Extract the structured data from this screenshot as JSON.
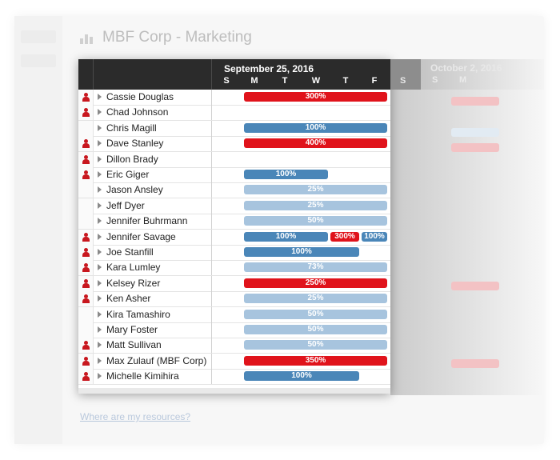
{
  "title": "MBF Corp - Marketing",
  "header": {
    "week_label": "September 25, 2016",
    "days": [
      "S",
      "M",
      "T",
      "W",
      "T",
      "F"
    ],
    "next_day": "S",
    "next_week_label": "October 2, 2016",
    "next_days": [
      "S",
      "M"
    ]
  },
  "footer_link": "Where are my resources?",
  "colors": {
    "red": "#e0131b",
    "blue": "#4a86b8",
    "light": "#a7c4de",
    "header": "#2b2b2b"
  },
  "rows": [
    {
      "name": "Cassie Douglas",
      "flag": true,
      "bars": [
        {
          "label": "300%",
          "color": "red",
          "from_day": 1,
          "to_day": 6
        }
      ]
    },
    {
      "name": "Chad Johnson",
      "flag": true,
      "bars": []
    },
    {
      "name": "Chris Magill",
      "flag": false,
      "bars": [
        {
          "label": "100%",
          "color": "blue",
          "from_day": 1,
          "to_day": 6
        }
      ]
    },
    {
      "name": "Dave Stanley",
      "flag": true,
      "bars": [
        {
          "label": "400%",
          "color": "red",
          "from_day": 1,
          "to_day": 6
        }
      ]
    },
    {
      "name": "Dillon Brady",
      "flag": true,
      "bars": []
    },
    {
      "name": "Eric Giger",
      "flag": true,
      "bars": [
        {
          "label": "100%",
          "color": "blue",
          "from_day": 1,
          "to_day": 4
        }
      ]
    },
    {
      "name": "Jason Ansley",
      "flag": false,
      "bars": [
        {
          "label": "25%",
          "color": "light",
          "from_day": 1,
          "to_day": 6
        }
      ]
    },
    {
      "name": "Jeff Dyer",
      "flag": false,
      "bars": [
        {
          "label": "25%",
          "color": "light",
          "from_day": 1,
          "to_day": 6
        }
      ]
    },
    {
      "name": "Jennifer Buhrmann",
      "flag": false,
      "bars": [
        {
          "label": "50%",
          "color": "light",
          "from_day": 1,
          "to_day": 6
        }
      ]
    },
    {
      "name": "Jennifer Savage",
      "flag": true,
      "bars": [
        {
          "label": "100%",
          "color": "blue",
          "from_day": 1,
          "to_day": 4
        },
        {
          "label": "300%",
          "color": "red",
          "from_day": 4,
          "to_day": 5
        },
        {
          "label": "100%",
          "color": "blue",
          "from_day": 5,
          "to_day": 6
        }
      ]
    },
    {
      "name": "Joe Stanfill",
      "flag": true,
      "bars": [
        {
          "label": "100%",
          "color": "blue",
          "from_day": 1,
          "to_day": 5
        }
      ]
    },
    {
      "name": "Kara Lumley",
      "flag": true,
      "bars": [
        {
          "label": "73%",
          "color": "light",
          "from_day": 1,
          "to_day": 6
        }
      ]
    },
    {
      "name": "Kelsey Rizer",
      "flag": true,
      "bars": [
        {
          "label": "250%",
          "color": "red",
          "from_day": 1,
          "to_day": 6
        }
      ]
    },
    {
      "name": "Ken Asher",
      "flag": true,
      "bars": [
        {
          "label": "25%",
          "color": "light",
          "from_day": 1,
          "to_day": 6
        }
      ]
    },
    {
      "name": "Kira Tamashiro",
      "flag": false,
      "bars": [
        {
          "label": "50%",
          "color": "light",
          "from_day": 1,
          "to_day": 6
        }
      ]
    },
    {
      "name": "Mary Foster",
      "flag": false,
      "bars": [
        {
          "label": "50%",
          "color": "light",
          "from_day": 1,
          "to_day": 6
        }
      ]
    },
    {
      "name": "Matt Sullivan",
      "flag": true,
      "bars": [
        {
          "label": "50%",
          "color": "light",
          "from_day": 1,
          "to_day": 6
        }
      ]
    },
    {
      "name": "Max Zulauf (MBF Corp)",
      "flag": true,
      "bars": [
        {
          "label": "350%",
          "color": "red",
          "from_day": 1,
          "to_day": 6
        }
      ]
    },
    {
      "name": "Michelle Kimihira",
      "flag": true,
      "bars": [
        {
          "label": "100%",
          "color": "blue",
          "from_day": 1,
          "to_day": 5
        }
      ]
    }
  ]
}
